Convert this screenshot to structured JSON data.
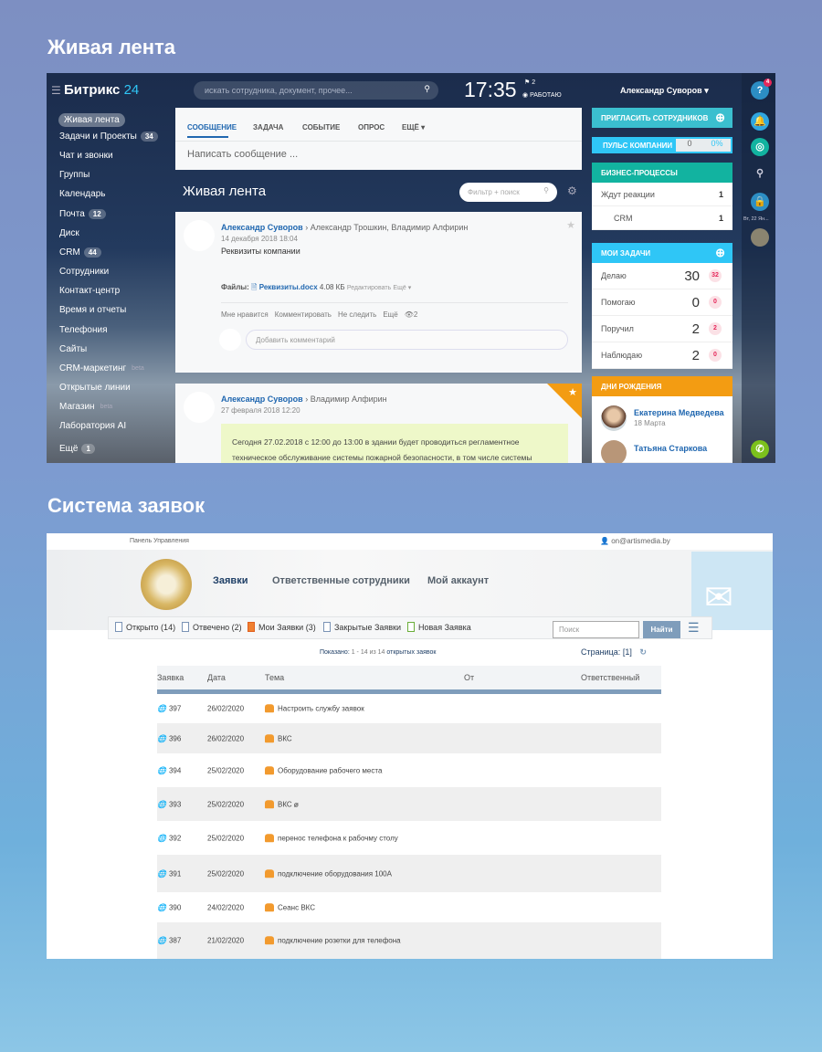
{
  "section1_title": "Живая лента",
  "section2_title": "Система заявок",
  "bitrix": {
    "logo": "Битрикс",
    "logo_num": "24",
    "search_placeholder": "искать сотрудника, документ, прочее...",
    "time": "17:35",
    "flag_count": "2",
    "status": "РАБОТАЮ",
    "user": "Александр Суворов",
    "sidebar": [
      {
        "label": "Живая лента"
      },
      {
        "label": "Задачи и Проекты",
        "count": "34"
      },
      {
        "label": "Чат и звонки"
      },
      {
        "label": "Группы"
      },
      {
        "label": "Календарь"
      },
      {
        "label": "Почта",
        "count": "12"
      },
      {
        "label": "Диск"
      },
      {
        "label": "CRM",
        "count": "44"
      },
      {
        "label": "Сотрудники"
      },
      {
        "label": "Контакт-центр"
      },
      {
        "label": "Время и отчеты"
      },
      {
        "label": "Телефония"
      },
      {
        "label": "Сайты"
      },
      {
        "label": "CRM-маркетинг",
        "beta": "beta"
      },
      {
        "label": "Открытые линии"
      },
      {
        "label": "Магазин",
        "beta": "beta"
      },
      {
        "label": "Лаборатория AI"
      },
      {
        "label": "Ещё",
        "count": "1"
      }
    ],
    "composer_tabs": [
      "СООБЩЕНИЕ",
      "ЗАДАЧА",
      "СОБЫТИЕ",
      "ОПРОС",
      "ЕЩЁ"
    ],
    "composer_placeholder": "Написать сообщение ...",
    "feed_title": "Живая лента",
    "filter_placeholder": "Фильтр + поиск",
    "post1": {
      "author": "Александр Суворов",
      "recipients": "Александр Трошкин, Владимир Алфирин",
      "date": "14 декабря 2018 18:04",
      "text": "Реквизиты компании",
      "files_label": "Файлы:",
      "file_name": "Реквизиты.docx",
      "file_size": "4.08 КБ",
      "edit": "Редактировать",
      "more": "Ещё",
      "actions": [
        "Мне нравится",
        "Комментировать",
        "Не следить",
        "Ещё"
      ],
      "views": "2",
      "comment_placeholder": "Добавить комментарий"
    },
    "post2": {
      "author": "Александр Суворов",
      "recipients": "Владимир Алфирин",
      "date": "27 февраля 2018 12:20",
      "text": "Сегодня 27.02.2018 с 12:00 до 13:00 в здании будет проводиться регламентное техническое обслуживание системы пожарной безопасности, в том числе системы"
    },
    "invite": "ПРИГЛАСИТЬ СОТРУДНИКОВ",
    "pulse": {
      "label": "ПУЛЬС КОМПАНИИ",
      "value": "0",
      "percent": "0%"
    },
    "bp": {
      "title": "БИЗНЕС-ПРОЦЕССЫ",
      "rows": [
        {
          "label": "Ждут реакции",
          "value": "1"
        },
        {
          "label": "CRM",
          "value": "1"
        }
      ]
    },
    "tasks": {
      "title": "МОИ ЗАДАЧИ",
      "rows": [
        {
          "label": "Делаю",
          "value": "30",
          "badge": "32"
        },
        {
          "label": "Помогаю",
          "value": "0",
          "badge": "0"
        },
        {
          "label": "Поручил",
          "value": "2",
          "badge": "2"
        },
        {
          "label": "Наблюдаю",
          "value": "2",
          "badge": "0"
        }
      ]
    },
    "birthdays": {
      "title": "ДНИ РОЖДЕНИЯ",
      "people": [
        {
          "name": "Екатерина Медведева",
          "date": "18 Марта"
        },
        {
          "name": "Татьяна Старкова"
        }
      ]
    },
    "right_strip": {
      "help_badge": "4",
      "date": "Вт, 22 Ян..."
    },
    "colors": {
      "accent": "#2fc6f6",
      "teal": "#3bbfcf",
      "green": "#12b3a0",
      "orange": "#f39c12"
    }
  },
  "helpdesk": {
    "panel": "Панель Управления",
    "email": "on@artismedia.by",
    "nav": [
      "Заявки",
      "Ответственные сотрудники",
      "Мой аккаунт"
    ],
    "filters": [
      "Открыто (14)",
      "Отвечено (2)",
      "Мои Заявки (3)",
      "Закрытые Заявки",
      "Новая Заявка"
    ],
    "search_placeholder": "Поиск",
    "search_button": "Найти",
    "shown_label": "Показано:",
    "shown_range": "1 - 14 из 14",
    "shown_link": "открытых заявок",
    "page_label": "Страница:",
    "page_value": "[1]",
    "columns": [
      "Заявка",
      "Дата",
      "Тема",
      "От",
      "Ответственный"
    ],
    "rows": [
      {
        "id": "397",
        "date": "26/02/2020",
        "subject": "Настроить службу заявок"
      },
      {
        "id": "396",
        "date": "26/02/2020",
        "subject": "ВКС"
      },
      {
        "id": "394",
        "date": "25/02/2020",
        "subject": "Оборудование рабочего места"
      },
      {
        "id": "393",
        "date": "25/02/2020",
        "subject": "ВКС",
        "attachment": true
      },
      {
        "id": "392",
        "date": "25/02/2020",
        "subject": "перенос телефона к рабочму столу"
      },
      {
        "id": "391",
        "date": "25/02/2020",
        "subject": "подключение оборудования 100А"
      },
      {
        "id": "390",
        "date": "24/02/2020",
        "subject": "Сеанс ВКС"
      },
      {
        "id": "387",
        "date": "21/02/2020",
        "subject": "подключение розетки для телефона"
      }
    ]
  }
}
